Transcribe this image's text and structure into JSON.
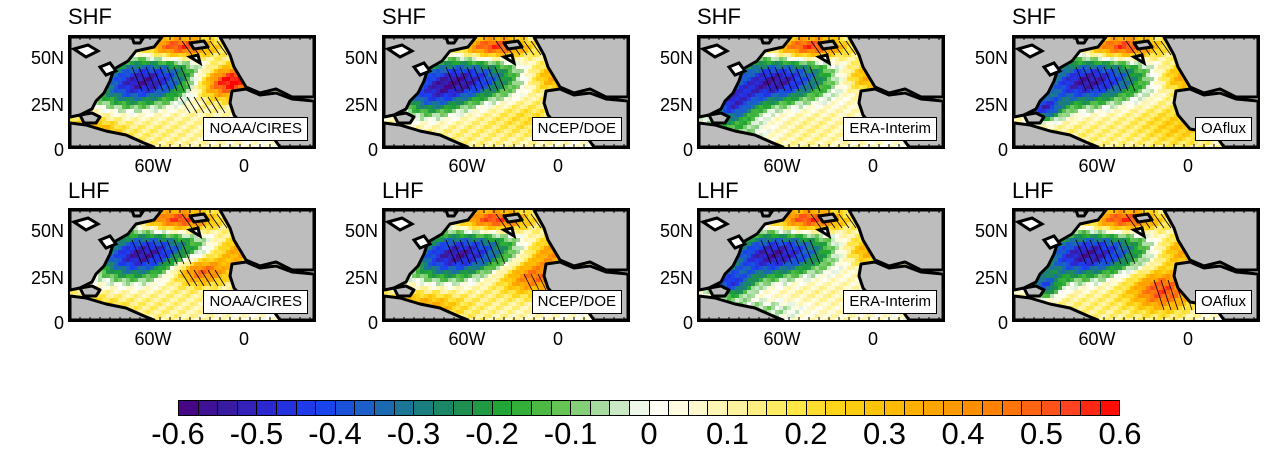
{
  "panels": [
    {
      "title": "SHF",
      "dataset": "NOAA/CIRES",
      "variant": 0
    },
    {
      "title": "SHF",
      "dataset": "NCEP/DOE",
      "variant": 1
    },
    {
      "title": "SHF",
      "dataset": "ERA-Interim",
      "variant": 2
    },
    {
      "title": "SHF",
      "dataset": "OAflux",
      "variant": 3
    },
    {
      "title": "LHF",
      "dataset": "NOAA/CIRES",
      "variant": 4
    },
    {
      "title": "LHF",
      "dataset": "NCEP/DOE",
      "variant": 5
    },
    {
      "title": "LHF",
      "dataset": "ERA-Interim",
      "variant": 6
    },
    {
      "title": "LHF",
      "dataset": "OAflux",
      "variant": 7
    }
  ],
  "lat_labels": [
    "50N",
    "25N",
    "0"
  ],
  "lon_labels": [
    "60W",
    "0"
  ],
  "colorbar": {
    "labels": [
      "-0.6",
      "-0.5",
      "-0.4",
      "-0.3",
      "-0.2",
      "-0.1",
      "0",
      "0.1",
      "0.2",
      "0.3",
      "0.4",
      "0.5",
      "0.6"
    ],
    "min": -0.6,
    "max": 0.6,
    "n_boxes": 48
  },
  "colors": {
    "land": "#bdbdbd",
    "coast": "#000000",
    "hatch": "#000000"
  }
}
